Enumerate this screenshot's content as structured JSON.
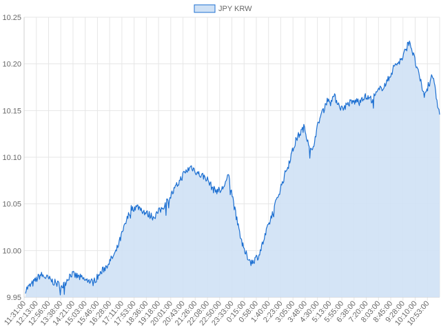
{
  "chart_data": {
    "type": "area",
    "title": "",
    "xlabel": "",
    "ylabel": "",
    "legend": {
      "position": "top",
      "entries": [
        "JPY KRW"
      ]
    },
    "series": [
      {
        "name": "JPY KRW",
        "line_color": "#1c6fd1",
        "fill_color": "#cfe1f5",
        "values": [
          9.958,
          9.965,
          9.974,
          9.97,
          9.965,
          9.962,
          9.975,
          9.972,
          9.968,
          9.966,
          9.976,
          9.986,
          9.998,
          10.022,
          10.045,
          10.047,
          10.04,
          10.036,
          10.044,
          10.055,
          10.068,
          10.082,
          10.09,
          10.082,
          10.078,
          10.065,
          10.064,
          10.08,
          10.035,
          10.0,
          9.987,
          9.995,
          10.02,
          10.045,
          10.07,
          10.095,
          10.12,
          10.132,
          10.105,
          10.14,
          10.16,
          10.165,
          10.152,
          10.158,
          10.16,
          10.165,
          10.162,
          10.172,
          10.18,
          10.198,
          10.205,
          10.225,
          10.195,
          10.165,
          10.19,
          10.145
        ]
      }
    ],
    "x_tick_labels": [
      "11:31:00",
      "12:13:00",
      "12:56:00",
      "13:38:00",
      "14:21:00",
      "15:03:00",
      "15:46:00",
      "16:28:00",
      "17:11:00",
      "17:53:00",
      "18:36:00",
      "19:18:00",
      "20:01:00",
      "20:43:00",
      "21:26:00",
      "22:08:00",
      "22:50:00",
      "23:33:00",
      "0:15:00",
      "0:58:00",
      "1:40:00",
      "2:23:00",
      "3:05:00",
      "3:48:00",
      "4:30:00",
      "5:13:00",
      "5:55:00",
      "6:38:00",
      "7:20:00",
      "8:03:00",
      "8:45:00",
      "9:28:00",
      "10:10:00",
      "10:53:00"
    ],
    "y_ticks": [
      9.95,
      10.0,
      10.05,
      10.1,
      10.15,
      10.2,
      10.25
    ],
    "y_tick_labels": [
      "9.95",
      "10.00",
      "10.05",
      "10.10",
      "10.15",
      "10.20",
      "10.25"
    ],
    "ylim": [
      9.95,
      10.25
    ],
    "grid": true
  }
}
